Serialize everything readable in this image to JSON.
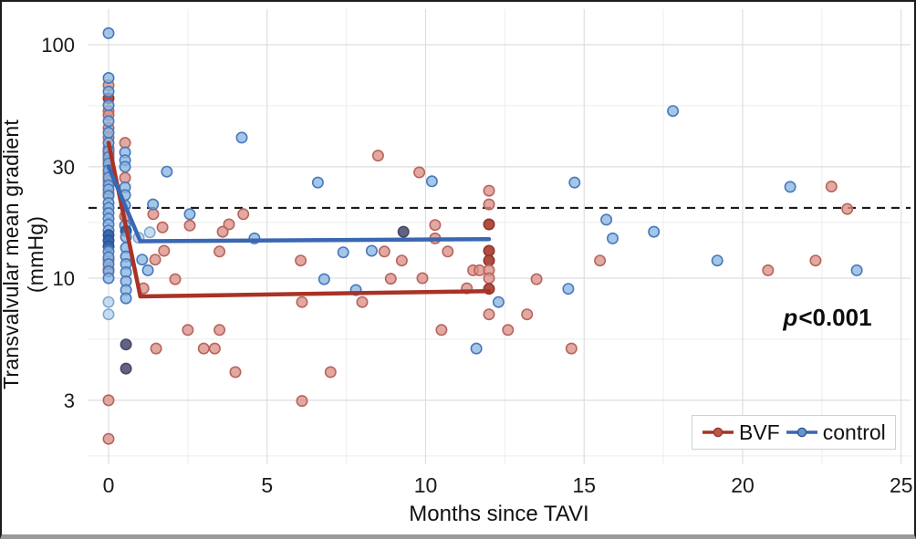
{
  "figure": {
    "xlabel": "Months since TAVI",
    "ylabel": "Transvalvular mean gradient (mmHg)",
    "annotation": {
      "p": "p",
      "value": "<0.001"
    },
    "legend": [
      {
        "label": "BVF",
        "color": "#a93226"
      },
      {
        "label": "control",
        "color": "#3a67b1"
      }
    ]
  },
  "chart_data": {
    "type": "scatter",
    "title": "",
    "xlabel": "Months since TAVI",
    "ylabel": "Transvalvular mean gradient (mmHg)",
    "x_axis": {
      "ticks": [
        0,
        5,
        10,
        15,
        20,
        25
      ],
      "minor_ticks": [
        2.5,
        7.5,
        12.5,
        17.5,
        22.5
      ],
      "range": [
        -0.65,
        25.3
      ],
      "unit": "months"
    },
    "y_axis": {
      "scale": "log10",
      "ticks": [
        3,
        10,
        30,
        100
      ],
      "minor_ticks": [
        1.732,
        5.477,
        17.32,
        54.77
      ],
      "range": [
        1.6,
        142
      ],
      "unit": "mmHg"
    },
    "grid": true,
    "threshold_line": {
      "y": 20,
      "style": "dashed",
      "color": "#1a1a1a"
    },
    "annotation": "p<0.001",
    "legend_position": "inside-bottom-right",
    "series": [
      {
        "name": "BVF",
        "line_color": "#a93226",
        "marker": {
          "fill": "#DA9189",
          "stroke": "#B8645B",
          "dark_fill": "#AE4237",
          "dark_stroke": "#8F352C"
        },
        "trend": [
          [
            0,
            38
          ],
          [
            1,
            8.35
          ],
          [
            12,
            8.8
          ]
        ],
        "points": [
          [
            0,
            67
          ],
          [
            0,
            59,
            "d"
          ],
          [
            0,
            52
          ],
          [
            0,
            50
          ],
          [
            0,
            44
          ],
          [
            0,
            40
          ],
          [
            0,
            36
          ],
          [
            0,
            34
          ],
          [
            0,
            32
          ],
          [
            0,
            30.5
          ],
          [
            0,
            28
          ],
          [
            0,
            26
          ],
          [
            0,
            23
          ],
          [
            0,
            12
          ],
          [
            0,
            10.9
          ],
          [
            0,
            3
          ],
          [
            0,
            2.05
          ],
          [
            0.52,
            38
          ],
          [
            0.52,
            26.9
          ],
          [
            0.52,
            18.4
          ],
          [
            1.41,
            18.8
          ],
          [
            1.7,
            16.5
          ],
          [
            2.56,
            16.8
          ],
          [
            4.25,
            18.8
          ],
          [
            3.8,
            17
          ],
          [
            3.6,
            15.8
          ],
          [
            1.75,
            13.1
          ],
          [
            3.5,
            13
          ],
          [
            1.47,
            12
          ],
          [
            8.5,
            33.5
          ],
          [
            9.8,
            28.4
          ],
          [
            12,
            23.7
          ],
          [
            12,
            20.7
          ],
          [
            12,
            17,
            "d"
          ],
          [
            10.3,
            16.9
          ],
          [
            10.3,
            14.8
          ],
          [
            10.7,
            13
          ],
          [
            12,
            13.1,
            "d"
          ],
          [
            8.7,
            13
          ],
          [
            6.06,
            11.9
          ],
          [
            9.25,
            11.9
          ],
          [
            12,
            11.9,
            "d"
          ],
          [
            15.5,
            11.9
          ],
          [
            11.5,
            10.8
          ],
          [
            11.7,
            10.8
          ],
          [
            12,
            10.8
          ],
          [
            2.1,
            9.9
          ],
          [
            1.1,
            9.05
          ],
          [
            9.9,
            10
          ],
          [
            12,
            10
          ],
          [
            13.5,
            9.9
          ],
          [
            11.3,
            9.05
          ],
          [
            8.9,
            9.95
          ],
          [
            12,
            9,
            "d"
          ],
          [
            6.1,
            7.9
          ],
          [
            8,
            7.9
          ],
          [
            12,
            7
          ],
          [
            13.2,
            7
          ],
          [
            2.5,
            6
          ],
          [
            3.5,
            6
          ],
          [
            10.5,
            6
          ],
          [
            12.6,
            6
          ],
          [
            1.5,
            5
          ],
          [
            3,
            5
          ],
          [
            3.35,
            5
          ],
          [
            14.6,
            5
          ],
          [
            4,
            3.96
          ],
          [
            7,
            3.96
          ],
          [
            6.1,
            2.98
          ],
          [
            22.8,
            24.7
          ],
          [
            23.3,
            19.8
          ],
          [
            20.8,
            10.8
          ],
          [
            22.3,
            11.9
          ]
        ]
      },
      {
        "name": "control",
        "line_color": "#3a67b1",
        "marker": {
          "fill": "#8AB6E1",
          "stroke": "#4878BC",
          "dark_fill": "#3566AE",
          "dark_stroke": "#2A528E",
          "navy_fill": "#5A5A7D",
          "navy_stroke": "#484865",
          "light_fill": "#AFD0EB",
          "light_stroke": "#7FA9D2"
        },
        "trend": [
          [
            0,
            30
          ],
          [
            1,
            14.4
          ],
          [
            12,
            14.7
          ]
        ],
        "points": [
          [
            0,
            112
          ],
          [
            0,
            72
          ],
          [
            0,
            63
          ],
          [
            0,
            55
          ],
          [
            0,
            47
          ],
          [
            0,
            42
          ],
          [
            0,
            38
          ],
          [
            0,
            35
          ],
          [
            0,
            33
          ],
          [
            0,
            31
          ],
          [
            0,
            29
          ],
          [
            0,
            27
          ],
          [
            0,
            25
          ],
          [
            0,
            24
          ],
          [
            0,
            22.5
          ],
          [
            0,
            21
          ],
          [
            0,
            20
          ],
          [
            0,
            19
          ],
          [
            0,
            18
          ],
          [
            0,
            17
          ],
          [
            0,
            16
          ],
          [
            0,
            15.3,
            "d"
          ],
          [
            0,
            14.5,
            "d"
          ],
          [
            0,
            13.7,
            "d"
          ],
          [
            0,
            13
          ],
          [
            0,
            12.3
          ],
          [
            0,
            11.5
          ],
          [
            0,
            10.7
          ],
          [
            0,
            10
          ],
          [
            0,
            7.9,
            "l"
          ],
          [
            0,
            7,
            "l"
          ],
          [
            0.52,
            34.6
          ],
          [
            0.52,
            32
          ],
          [
            0.52,
            30
          ],
          [
            0.52,
            24.5
          ],
          [
            0.52,
            22.7
          ],
          [
            0.52,
            20.5
          ],
          [
            0.52,
            16.8
          ],
          [
            0.55,
            15.9,
            "d"
          ],
          [
            0.55,
            15
          ],
          [
            0.55,
            13.5
          ],
          [
            0.55,
            12.4
          ],
          [
            0.55,
            11.5
          ],
          [
            0.55,
            10.6
          ],
          [
            0.55,
            9.7
          ],
          [
            0.55,
            8.9
          ],
          [
            0.55,
            8.2
          ],
          [
            0.55,
            5.2,
            "n"
          ],
          [
            0.55,
            4.1,
            "n"
          ],
          [
            1.84,
            28.6
          ],
          [
            1.4,
            20.7
          ],
          [
            2.56,
            18.8
          ],
          [
            4.2,
            40
          ],
          [
            6.6,
            25.7
          ],
          [
            4.6,
            14.8
          ],
          [
            1.3,
            15.7,
            "l"
          ],
          [
            0.95,
            14.9,
            "l"
          ],
          [
            1.06,
            12
          ],
          [
            1.24,
            10.8
          ],
          [
            7.4,
            12.9
          ],
          [
            8.3,
            13.1
          ],
          [
            9.3,
            15.8,
            "n"
          ],
          [
            6.8,
            9.9
          ],
          [
            7.8,
            8.9
          ],
          [
            10.2,
            26
          ],
          [
            14.7,
            25.7
          ],
          [
            15.7,
            17.8
          ],
          [
            17.2,
            15.8
          ],
          [
            15.9,
            14.8
          ],
          [
            12.3,
            7.9
          ],
          [
            11.6,
            5
          ],
          [
            14.5,
            9
          ],
          [
            17.8,
            52
          ],
          [
            21.5,
            24.6
          ],
          [
            19.2,
            11.9
          ],
          [
            23.6,
            10.8
          ]
        ]
      }
    ]
  }
}
